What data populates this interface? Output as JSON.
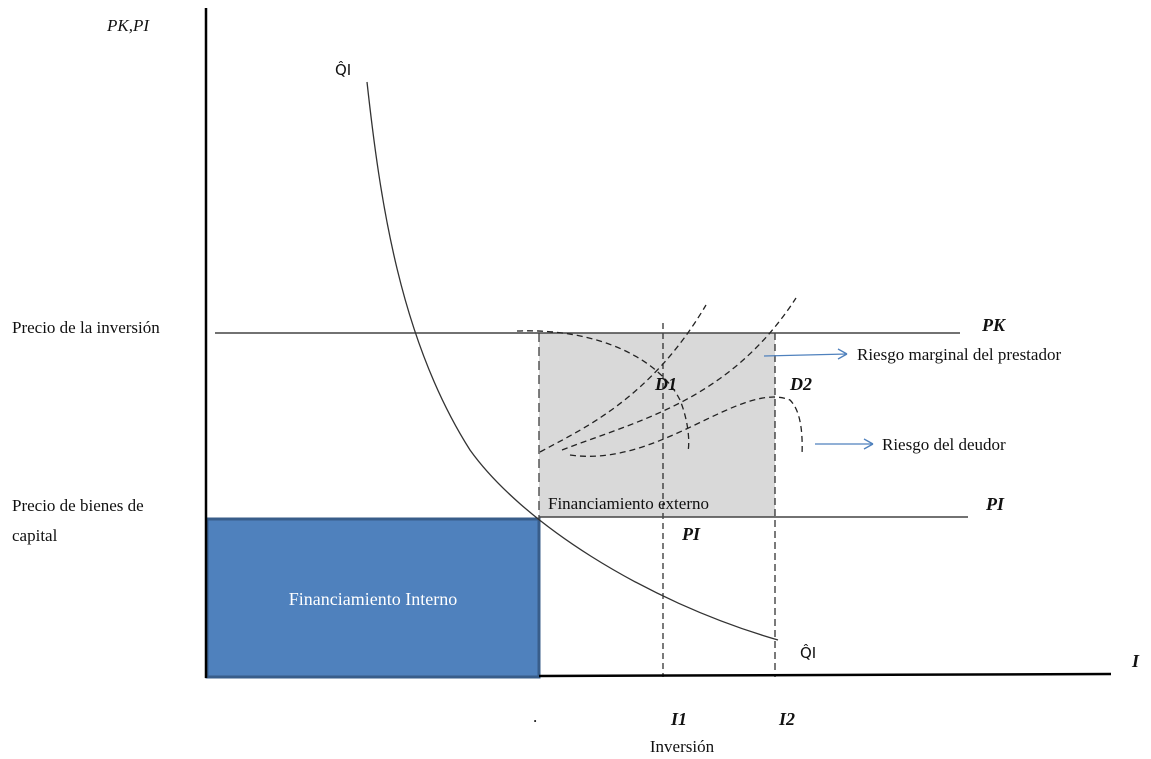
{
  "colors": {
    "internal_box": "#4f81bd",
    "internal_box_border": "#385d8a",
    "external_box": "#d9d9d9",
    "arrow": "#4f81bd",
    "line": "#000000"
  },
  "labels": {
    "y_axis": "PK,PI",
    "x_axis": "I",
    "x_axis_caption": "Inversión",
    "curve_top": "Q̂I",
    "curve_bottom": "Q̂I",
    "pk": "PK",
    "pi_right": "PI",
    "pi_below": "PI",
    "d1": "D1",
    "d2": "D2",
    "i1": "I1",
    "i2": "I2",
    "dot": ".",
    "price_investment": "Precio de la inversión",
    "price_capital_line1": "Precio de bienes de",
    "price_capital_line2": "capital",
    "internal_financing": "Financiamiento Interno",
    "external_financing": "Financiamiento externo",
    "lender_risk": "Riesgo marginal del prestador",
    "borrower_risk": "Riesgo del deudor"
  }
}
